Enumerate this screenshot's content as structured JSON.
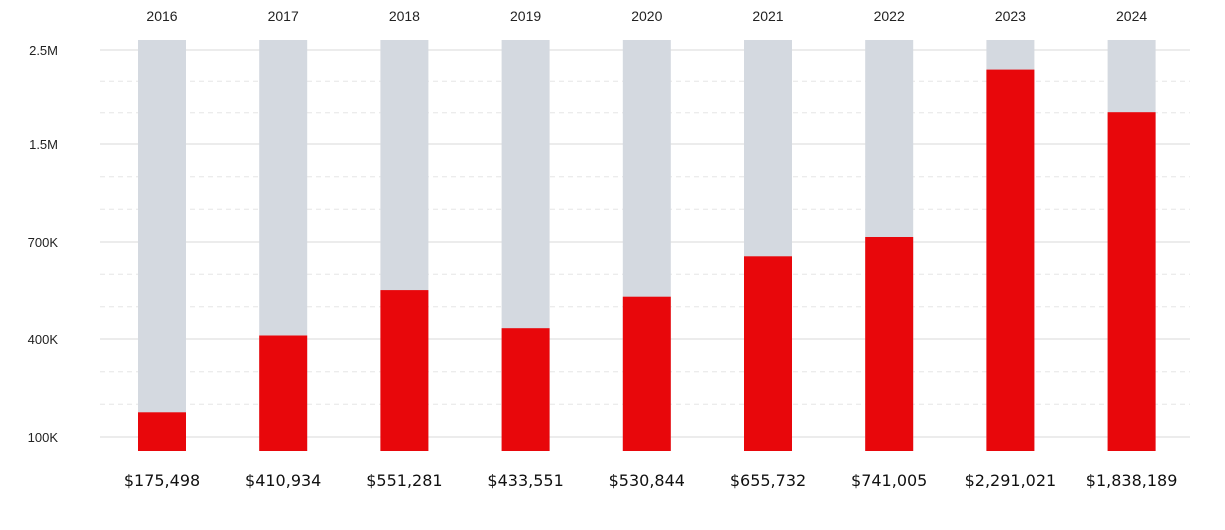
{
  "chart_data": {
    "type": "bar",
    "scale": "piecewise-linear",
    "categories": [
      "2016",
      "2017",
      "2018",
      "2019",
      "2020",
      "2021",
      "2022",
      "2023",
      "2024"
    ],
    "values": [
      175498,
      410934,
      551281,
      433551,
      530844,
      655732,
      741005,
      2291021,
      1838189
    ],
    "value_labels": [
      "$175,498",
      "$410,934",
      "$551,281",
      "$433,551",
      "$530,844",
      "$655,732",
      "$741,005",
      "$2,291,021",
      "$1,838,189"
    ],
    "y_ticks": [
      {
        "value": 100000,
        "label": "100K"
      },
      {
        "value": 400000,
        "label": "400K"
      },
      {
        "value": 700000,
        "label": "700K"
      },
      {
        "value": 1500000,
        "label": "1.5M"
      },
      {
        "value": 2500000,
        "label": "2.5M"
      }
    ],
    "ylim": [
      100000,
      2500000
    ],
    "title": "",
    "xlabel": "",
    "ylabel": "",
    "grid": true,
    "category_axis_position": "top",
    "value_labels_position": "bottom",
    "colors": {
      "bar": "#e8070b",
      "track": "#d4d9e0",
      "grid": "#d9d9d9",
      "grid_minor": "#e6e6e6"
    }
  }
}
